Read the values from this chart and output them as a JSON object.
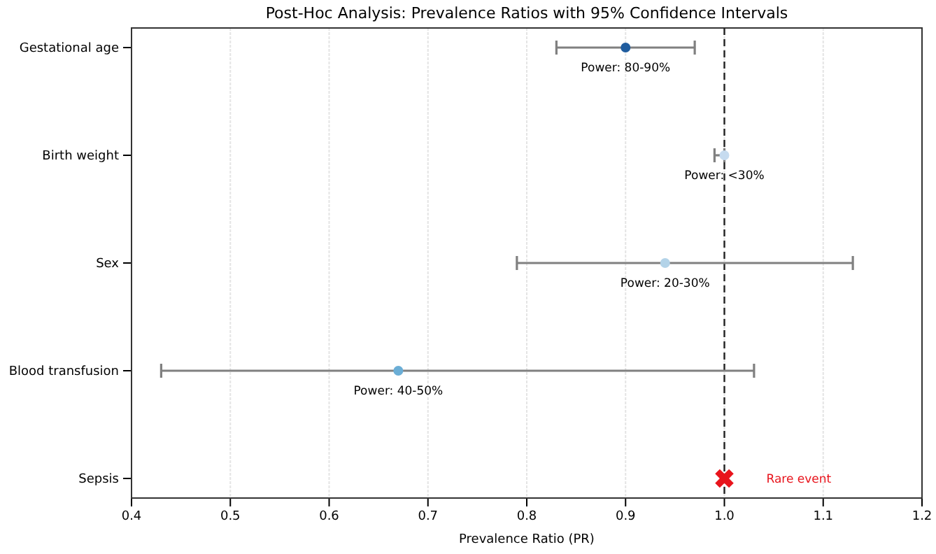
{
  "chart_data": {
    "type": "scatter",
    "orientation": "horizontal",
    "title": "Post-Hoc Analysis: Prevalence Ratios with 95% Confidence Intervals",
    "xlabel": "Prevalence Ratio (PR)",
    "categories": [
      "Gestational age",
      "Birth weight",
      "Sex",
      "Blood transfusion",
      "Sepsis"
    ],
    "series": [
      {
        "values": [
          0.9,
          1.0,
          0.94,
          0.67,
          null
        ],
        "colors": [
          "#1f5c9e",
          "#c6dbef",
          "#b3d3e8",
          "#6baed6",
          null
        ],
        "marker": "circle",
        "errors": [
          [
            0.83,
            0.97
          ],
          [
            0.99,
            1.0
          ],
          [
            0.79,
            1.13
          ],
          [
            0.43,
            1.03
          ],
          null
        ]
      },
      {
        "values": [
          null,
          null,
          null,
          null,
          1.0
        ],
        "color": "#e8141c",
        "marker": "cross"
      }
    ],
    "xlim": [
      0.4,
      1.2
    ],
    "xticks": [
      0.4,
      0.5,
      0.6,
      0.7,
      0.8,
      0.9,
      {
        "value": 1.0,
        "label": "1.0"
      },
      1.1,
      1.2
    ],
    "grid": "x",
    "ref_lines": [
      {
        "axis": "x",
        "value": 1.0,
        "color": "#222222",
        "line_style": "dashed"
      }
    ],
    "annotations": [
      {
        "text": "Power: 80-90%",
        "x": 0.9,
        "y": "Gestational age"
      },
      {
        "text": "Power: <30%",
        "x": 1.0,
        "y": "Birth weight"
      },
      {
        "text": "Power: 20-30%",
        "x": 0.94,
        "y": "Sex"
      },
      {
        "text": "Power: 40-50%",
        "x": 0.67,
        "y": "Blood transfusion"
      },
      "Rare event"
    ]
  }
}
